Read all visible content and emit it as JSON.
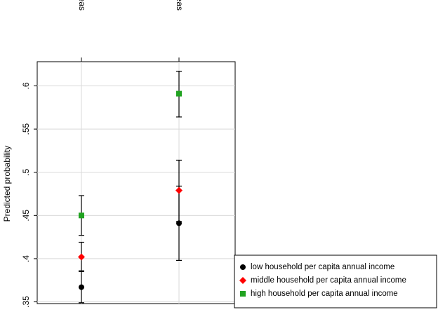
{
  "chart_data": {
    "type": "scatter",
    "ylabel": "Predicted probability",
    "categories": [
      "Rural areas",
      "Urban areas"
    ],
    "ylim": [
      0.348,
      0.628
    ],
    "yticks": [
      0.35,
      0.4,
      0.45,
      0.5,
      0.55,
      0.6
    ],
    "ytick_labels": [
      ".35",
      ".4",
      ".45",
      ".5",
      ".55",
      ".6"
    ],
    "grid": true,
    "legend_position": "bottom-right",
    "series": [
      {
        "name": "low household per capita annual income",
        "color": "#000000",
        "marker": "circle",
        "values": [
          0.367,
          0.441
        ],
        "ci_low": [
          0.349,
          0.398
        ],
        "ci_high": [
          0.385,
          0.484
        ]
      },
      {
        "name": "middle household per capita annual income",
        "color": "#ff0000",
        "marker": "diamond",
        "values": [
          0.402,
          0.479
        ],
        "ci_low": [
          0.386,
          0.443
        ],
        "ci_high": [
          0.419,
          0.514
        ]
      },
      {
        "name": "high household per capita annual income",
        "color": "#21a321",
        "marker": "square",
        "values": [
          0.45,
          0.591
        ],
        "ci_low": [
          0.427,
          0.564
        ],
        "ci_high": [
          0.473,
          0.617
        ]
      }
    ]
  }
}
